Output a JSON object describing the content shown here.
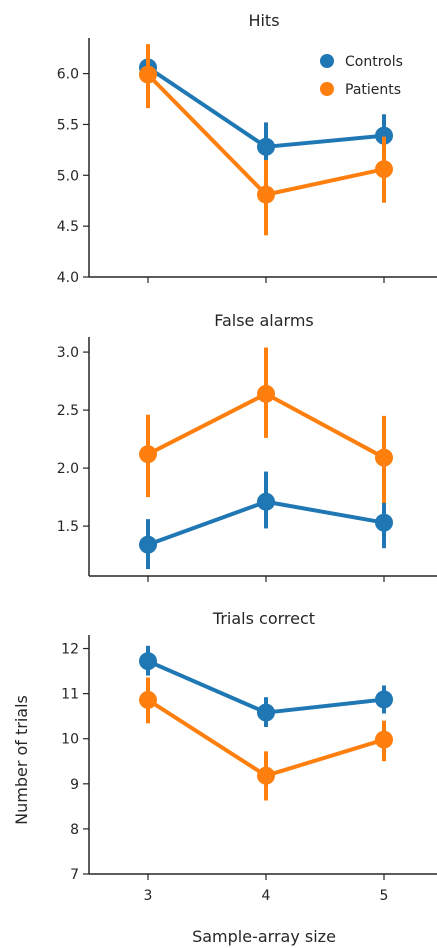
{
  "chart_data": [
    {
      "type": "line",
      "title": "Hits",
      "xlabel": "",
      "ylabel": "",
      "categories": [
        "3",
        "4",
        "5"
      ],
      "ylim": [
        4.0,
        6.35
      ],
      "yticks": [
        "4.0",
        "4.5",
        "5.0",
        "5.5",
        "6.0"
      ],
      "yticks_values": [
        4.0,
        4.5,
        5.0,
        5.5,
        6.0
      ],
      "legend": "top-right",
      "series": [
        {
          "name": "Controls",
          "color": "#1f77b4",
          "values": [
            6.06,
            5.28,
            5.39
          ],
          "ci_low": [
            5.84,
            5.04,
            5.18
          ],
          "ci_high": [
            6.27,
            5.52,
            5.6
          ]
        },
        {
          "name": "Patients",
          "color": "#ff7f0e",
          "values": [
            5.99,
            4.81,
            5.06
          ],
          "ci_low": [
            5.66,
            4.41,
            4.73
          ],
          "ci_high": [
            6.29,
            5.15,
            5.38
          ]
        }
      ]
    },
    {
      "type": "line",
      "title": "False alarms",
      "xlabel": "",
      "ylabel": "",
      "categories": [
        "3",
        "4",
        "5"
      ],
      "ylim": [
        1.07,
        3.13
      ],
      "yticks": [
        "1.5",
        "2.0",
        "2.5",
        "3.0"
      ],
      "yticks_values": [
        1.5,
        2.0,
        2.5,
        3.0
      ],
      "series": [
        {
          "name": "Controls",
          "color": "#1f77b4",
          "values": [
            1.34,
            1.71,
            1.53
          ],
          "ci_low": [
            1.13,
            1.48,
            1.31
          ],
          "ci_high": [
            1.56,
            1.97,
            1.74
          ]
        },
        {
          "name": "Patients",
          "color": "#ff7f0e",
          "values": [
            2.12,
            2.64,
            2.09
          ],
          "ci_low": [
            1.75,
            2.26,
            1.7
          ],
          "ci_high": [
            2.46,
            3.04,
            2.45
          ]
        }
      ]
    },
    {
      "type": "line",
      "title": "Trials correct",
      "xlabel": "Sample-array size",
      "ylabel": "Number of trials",
      "categories": [
        "3",
        "4",
        "5"
      ],
      "ylim": [
        7.0,
        12.3
      ],
      "yticks": [
        "7",
        "8",
        "9",
        "10",
        "11",
        "12"
      ],
      "yticks_values": [
        7,
        8,
        9,
        10,
        11,
        12
      ],
      "series": [
        {
          "name": "Controls",
          "color": "#1f77b4",
          "values": [
            11.72,
            10.58,
            10.87
          ],
          "ci_low": [
            11.4,
            10.26,
            10.56
          ],
          "ci_high": [
            12.06,
            10.92,
            11.18
          ]
        },
        {
          "name": "Patients",
          "color": "#ff7f0e",
          "values": [
            10.86,
            9.18,
            9.98
          ],
          "ci_low": [
            10.34,
            8.63,
            9.5
          ],
          "ci_high": [
            11.36,
            9.72,
            10.4
          ]
        }
      ]
    }
  ]
}
